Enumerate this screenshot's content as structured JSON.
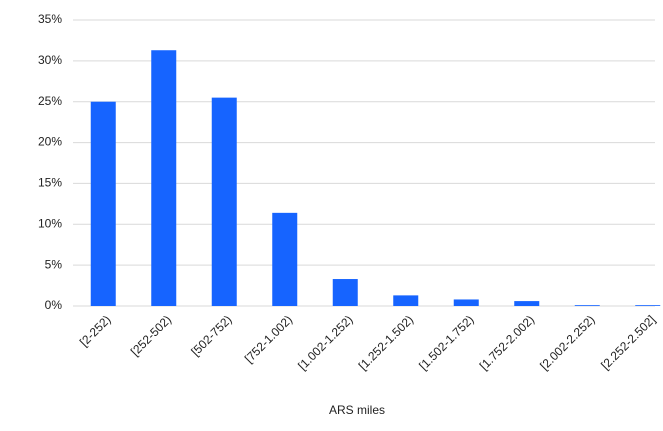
{
  "chart_data": {
    "type": "bar",
    "categories": [
      "[2-252)",
      "[252-502)",
      "[502-752)",
      "[752-1.002)",
      "[1.002-1.252)",
      "[1.252-1.502)",
      "[1.502-1.752)",
      "[1.752-2.002)",
      "[2.002-2.252)",
      "[2.252-2.502]"
    ],
    "values": [
      25.0,
      31.3,
      25.5,
      11.4,
      3.3,
      1.3,
      0.8,
      0.6,
      0.1,
      0.1
    ],
    "color": "#1664ff",
    "x_label": "ARS miles",
    "ylim": [
      0,
      35
    ],
    "yticks": [
      {
        "value": 0,
        "label": "0%"
      },
      {
        "value": 5,
        "label": "5%"
      },
      {
        "value": 10,
        "label": "10%"
      },
      {
        "value": 15,
        "label": "15%"
      },
      {
        "value": 20,
        "label": "20%"
      },
      {
        "value": 25,
        "label": "25%"
      },
      {
        "value": 30,
        "label": "30%"
      },
      {
        "value": 35,
        "label": "35%"
      }
    ],
    "grid": true
  }
}
